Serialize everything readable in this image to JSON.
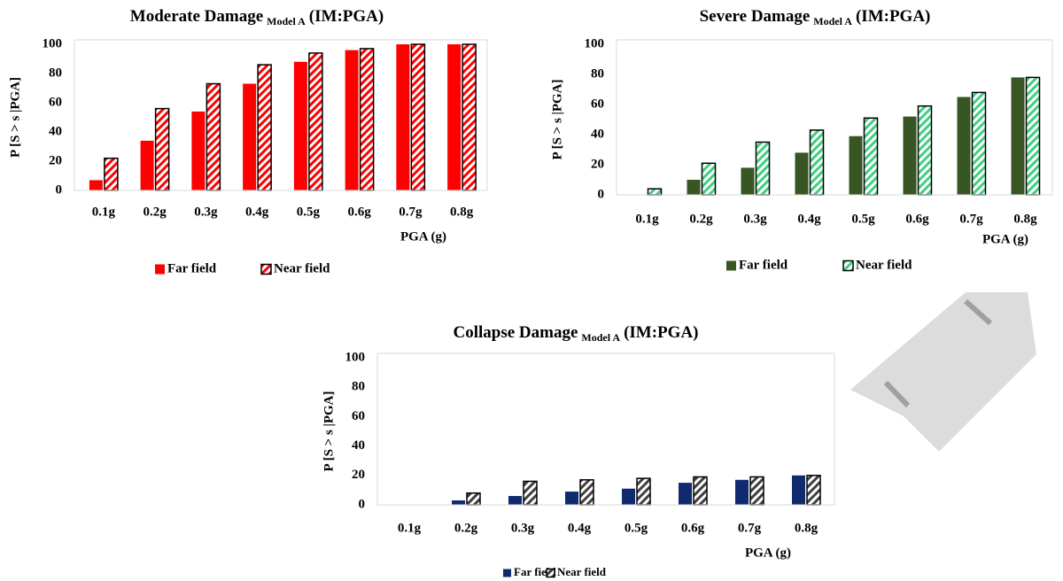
{
  "chart_data": [
    {
      "type": "bar",
      "title": "Moderate Damage",
      "title_sub": "Model A",
      "title_end": "(IM:PGA)",
      "ylabel": "P [S > s |PGA]",
      "xlabel": "PGA (g)",
      "categories": [
        "0.1g",
        "0.2g",
        "0.3g",
        "0.4g",
        "0.5g",
        "0.6g",
        "0.7g",
        "0.8g"
      ],
      "series": [
        {
          "name": "Far field",
          "color": "#ff0000",
          "values": [
            7,
            34,
            54,
            73,
            88,
            96,
            100,
            100
          ]
        },
        {
          "name": "Near field",
          "color": "#ff0000",
          "hatch": true,
          "values": [
            22,
            56,
            73,
            86,
            94,
            97,
            100,
            100
          ]
        }
      ],
      "ylim": [
        0,
        100
      ],
      "yticks": [
        0,
        20,
        40,
        60,
        80,
        100
      ]
    },
    {
      "type": "bar",
      "title": "Severe Damage",
      "title_sub": "Model A",
      "title_end": "(IM:PGA)",
      "ylabel": "P [S > s |PGA]",
      "xlabel": "PGA (g)",
      "categories": [
        "0.1g",
        "0.2g",
        "0.3g",
        "0.4g",
        "0.5g",
        "0.6g",
        "0.7g",
        "0.8g"
      ],
      "series": [
        {
          "name": "Far field",
          "color": "#375623",
          "values": [
            0,
            10,
            18,
            28,
            39,
            52,
            65,
            78
          ]
        },
        {
          "name": "Near field",
          "color": "#3fcf7f",
          "hatch": true,
          "values": [
            4,
            21,
            35,
            43,
            51,
            59,
            68,
            78
          ]
        }
      ],
      "ylim": [
        0,
        100
      ],
      "yticks": [
        0,
        20,
        40,
        60,
        80,
        100
      ]
    },
    {
      "type": "bar",
      "title": "Collapse Damage",
      "title_sub": "Model A",
      "title_end": "(IM:PGA)",
      "ylabel": "P [S > s |PGA]",
      "xlabel": "PGA (g)",
      "categories": [
        "0.1g",
        "0.2g",
        "0.3g",
        "0.4g",
        "0.5g",
        "0.6g",
        "0.7g",
        "0.8g"
      ],
      "series": [
        {
          "name": "Far field",
          "color": "#0f2a6e",
          "values": [
            0,
            3,
            6,
            9,
            11,
            15,
            17,
            20
          ]
        },
        {
          "name": "Near field",
          "color": "#404040",
          "hatch": true,
          "values": [
            0,
            8,
            16,
            17,
            18,
            19,
            19,
            20
          ]
        }
      ],
      "ylim": [
        0,
        100
      ],
      "yticks": [
        0,
        20,
        40,
        60,
        80,
        100
      ]
    }
  ]
}
